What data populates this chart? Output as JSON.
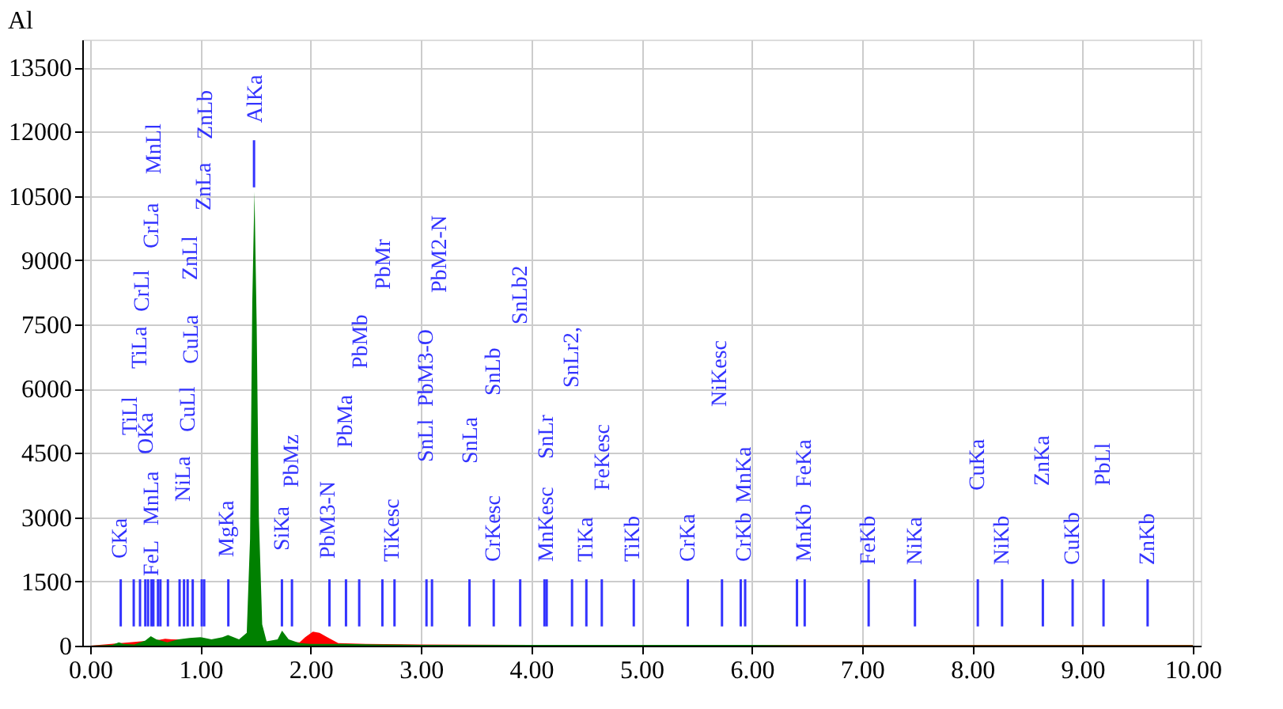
{
  "chart_data": {
    "type": "area",
    "title": "Al",
    "xlim": [
      0,
      10
    ],
    "ylim": [
      0,
      14150
    ],
    "xticks": [
      {
        "value": 0,
        "label": "0.00"
      },
      {
        "value": 1,
        "label": "1.00"
      },
      {
        "value": 2,
        "label": "2.00"
      },
      {
        "value": 3,
        "label": "3.00"
      },
      {
        "value": 4,
        "label": "4.00"
      },
      {
        "value": 5,
        "label": "5.00"
      },
      {
        "value": 6,
        "label": "6.00"
      },
      {
        "value": 7,
        "label": "7.00"
      },
      {
        "value": 8,
        "label": "8.00"
      },
      {
        "value": 9,
        "label": "9.00"
      },
      {
        "value": 10,
        "label": "10.00"
      }
    ],
    "yticks": [
      0,
      1500,
      3000,
      4500,
      6000,
      7500,
      9000,
      10500,
      12000,
      13500
    ],
    "grid": true,
    "series": [
      {
        "color": "#ff0000",
        "x": [
          0,
          0.63,
          0.68,
          0.74,
          1.9,
          1.95,
          2.02,
          2.08,
          2.15,
          2.25,
          2.5,
          3.0,
          4.0,
          5.0,
          6.0,
          7.0,
          8.0,
          9.0,
          10.0
        ],
        "values": [
          0,
          140,
          160,
          150,
          80,
          200,
          330,
          300,
          200,
          60,
          40,
          30,
          20,
          20,
          20,
          20,
          20,
          20,
          20
        ]
      },
      {
        "color": "#008000",
        "x": [
          0,
          0.2,
          0.26,
          0.3,
          0.4,
          0.5,
          0.55,
          0.6,
          0.7,
          0.8,
          0.9,
          1.0,
          1.1,
          1.2,
          1.25,
          1.35,
          1.42,
          1.45,
          1.47,
          1.49,
          1.51,
          1.53,
          1.56,
          1.6,
          1.7,
          1.74,
          1.8,
          1.9,
          2.0,
          2.1,
          2.3,
          2.6,
          3.0,
          4.0,
          5.0,
          6.0,
          6.5,
          7.0,
          10.0
        ],
        "values": [
          0,
          20,
          80,
          40,
          30,
          120,
          220,
          150,
          80,
          150,
          180,
          200,
          150,
          200,
          250,
          150,
          300,
          2500,
          8000,
          10600,
          7500,
          3000,
          500,
          100,
          150,
          350,
          150,
          60,
          40,
          40,
          40,
          30,
          20,
          20,
          20,
          20,
          10,
          10,
          10
        ]
      },
      {
        "type": "bar",
        "color": "#3333ff",
        "x": [
          0.277,
          0.395,
          0.452,
          0.5,
          0.525,
          0.556,
          0.573,
          0.615,
          0.637,
          0.705,
          0.811,
          0.851,
          0.884,
          0.93,
          1.012,
          1.034,
          1.253,
          1.486,
          1.739,
          1.83,
          2.17,
          2.32,
          2.44,
          2.65,
          2.76,
          3.05,
          3.1,
          3.44,
          3.66,
          3.9,
          4.12,
          4.14,
          4.37,
          4.5,
          4.64,
          4.93,
          5.42,
          5.73,
          5.9,
          5.94,
          6.41,
          6.48,
          7.06,
          7.48,
          8.05,
          8.27,
          8.64,
          8.91,
          9.19,
          9.59
        ],
        "values": [
          1100,
          1100,
          1100,
          1100,
          1100,
          1100,
          1100,
          1100,
          1100,
          1100,
          1100,
          1100,
          1100,
          1100,
          1100,
          1100,
          1100,
          1100,
          1100,
          1100,
          1100,
          1100,
          1100,
          1100,
          1100,
          1100,
          1100,
          1100,
          1100,
          1100,
          1100,
          1100,
          1100,
          1100,
          1100,
          1100,
          1100,
          1100,
          1100,
          1100,
          1100,
          1100,
          1100,
          1100,
          1100,
          1100,
          1100,
          1100,
          1100,
          1100
        ],
        "base": [
          450,
          450,
          450,
          450,
          450,
          450,
          450,
          450,
          450,
          450,
          450,
          450,
          450,
          450,
          450,
          450,
          450,
          10700,
          450,
          450,
          450,
          450,
          450,
          450,
          450,
          450,
          450,
          450,
          450,
          450,
          450,
          450,
          450,
          450,
          450,
          450,
          450,
          450,
          450,
          450,
          450,
          450,
          450,
          450,
          450,
          450,
          450,
          450,
          450,
          450
        ]
      }
    ],
    "annotations": [
      "CKa",
      "FeL",
      "MnLa",
      "OKa",
      "TiLl",
      "TiLa",
      "CrLl",
      "CrLa",
      "MnLl",
      "NiLa",
      "CuLl",
      "CuLa",
      "ZnLl",
      "ZnLa",
      "ZnLb",
      "MgKa",
      "AlKa",
      "SiKa",
      "PbMz",
      "PbM3-N",
      "PbMa",
      "PbMb",
      "PbMr",
      "TiKesc",
      "SnLl",
      "PbM3-O",
      "PbM2-N",
      "SnLa",
      "CrKesc",
      "SnLb",
      "SnLb2",
      "MnKesc",
      "SnLr",
      "SnLr2,",
      "TiKa",
      "FeKesc",
      "TiKb",
      "CrKa",
      "NiKesc",
      "CrKb",
      "MnKa",
      "MnKb",
      "FeKa",
      "FeKb",
      "NiKa",
      "CuKa",
      "NiKb",
      "ZnKa",
      "CuKb",
      "PbLl",
      "ZnKb"
    ]
  }
}
